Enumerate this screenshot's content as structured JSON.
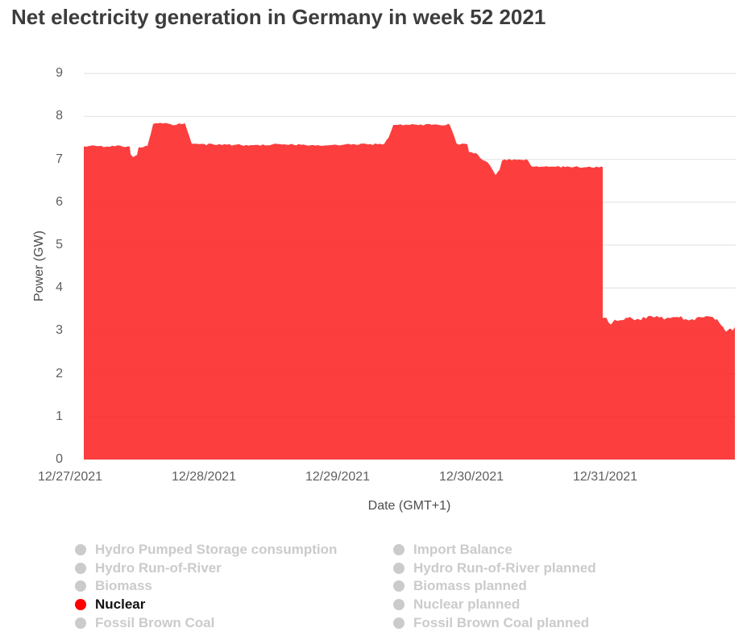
{
  "header": {
    "title": "Net electricity generation in Germany in week 52 2021"
  },
  "chart_data": {
    "type": "area",
    "title": "Net electricity generation in Germany in week 52 2021",
    "xlabel": "Date (GMT+1)",
    "ylabel": "Power (GW)",
    "ylim": [
      0,
      9
    ],
    "yticks": [
      0,
      1,
      2,
      3,
      4,
      5,
      6,
      7,
      8,
      9
    ],
    "grid": "horizontal",
    "grid_color": "#e7e7e7",
    "legend_position": "bottom",
    "xticks": [
      {
        "label": "12/27/2021",
        "day": 0
      },
      {
        "label": "12/28/2021",
        "day": 1
      },
      {
        "label": "12/29/2021",
        "day": 2
      },
      {
        "label": "12/30/2021",
        "day": 3
      },
      {
        "label": "12/31/2021",
        "day": 4
      }
    ],
    "x_visible_range_days": [
      0.1,
      4.97
    ],
    "series": [
      {
        "name": "Nuclear",
        "unit": "GW",
        "color": "#fc2929",
        "fill_opacity": 0.9,
        "points_day_gw": [
          [
            0.102,
            7.3
          ],
          [
            0.18,
            7.32
          ],
          [
            0.26,
            7.29
          ],
          [
            0.34,
            7.31
          ],
          [
            0.446,
            7.3
          ],
          [
            0.452,
            7.12
          ],
          [
            0.47,
            7.05
          ],
          [
            0.5,
            7.1
          ],
          [
            0.512,
            7.28
          ],
          [
            0.578,
            7.31
          ],
          [
            0.6,
            7.55
          ],
          [
            0.62,
            7.82
          ],
          [
            0.7,
            7.84
          ],
          [
            0.76,
            7.8
          ],
          [
            0.82,
            7.83
          ],
          [
            0.861,
            7.82
          ],
          [
            0.89,
            7.55
          ],
          [
            0.91,
            7.36
          ],
          [
            1.1,
            7.34
          ],
          [
            1.35,
            7.33
          ],
          [
            1.6,
            7.35
          ],
          [
            1.85,
            7.33
          ],
          [
            2.1,
            7.34
          ],
          [
            2.349,
            7.36
          ],
          [
            2.38,
            7.5
          ],
          [
            2.416,
            7.8
          ],
          [
            2.55,
            7.82
          ],
          [
            2.7,
            7.8
          ],
          [
            2.837,
            7.81
          ],
          [
            2.87,
            7.55
          ],
          [
            2.892,
            7.36
          ],
          [
            2.97,
            7.35
          ],
          [
            2.982,
            7.17
          ],
          [
            3.03,
            7.15
          ],
          [
            3.07,
            7.02
          ],
          [
            3.12,
            6.93
          ],
          [
            3.15,
            6.8
          ],
          [
            3.181,
            6.63
          ],
          [
            3.21,
            6.75
          ],
          [
            3.229,
            6.97
          ],
          [
            3.32,
            7.0
          ],
          [
            3.422,
            6.98
          ],
          [
            3.452,
            6.83
          ],
          [
            3.7,
            6.82
          ],
          [
            3.982,
            6.82
          ],
          [
            3.982,
            3.3
          ],
          [
            4.01,
            3.3
          ],
          [
            4.024,
            3.2
          ],
          [
            4.05,
            3.17
          ],
          [
            4.072,
            3.26
          ],
          [
            4.15,
            3.3
          ],
          [
            4.25,
            3.27
          ],
          [
            4.35,
            3.33
          ],
          [
            4.45,
            3.28
          ],
          [
            4.55,
            3.31
          ],
          [
            4.65,
            3.27
          ],
          [
            4.75,
            3.34
          ],
          [
            4.837,
            3.27
          ],
          [
            4.88,
            3.1
          ],
          [
            4.905,
            2.98
          ],
          [
            4.928,
            3.05
          ],
          [
            4.95,
            3.0
          ],
          [
            4.97,
            3.12
          ]
        ]
      }
    ]
  },
  "legend": {
    "inactive_color": "#cbcbcb",
    "active_text_color": "#111111",
    "columns": [
      {
        "items": [
          {
            "label": "Hydro Pumped Storage consumption",
            "active": false
          },
          {
            "label": "Hydro Run-of-River",
            "active": false
          },
          {
            "label": "Biomass",
            "active": false
          },
          {
            "label": "Nuclear",
            "active": true,
            "color": "#fe0000"
          },
          {
            "label": "Fossil Brown Coal",
            "active": false,
            "clipped": true
          }
        ]
      },
      {
        "items": [
          {
            "label": "Import Balance",
            "active": false
          },
          {
            "label": "Hydro Run-of-River planned",
            "active": false
          },
          {
            "label": "Biomass planned",
            "active": false
          },
          {
            "label": "Nuclear planned",
            "active": false
          },
          {
            "label": "Fossil Brown Coal planned",
            "active": false,
            "clipped": true
          }
        ]
      }
    ]
  }
}
